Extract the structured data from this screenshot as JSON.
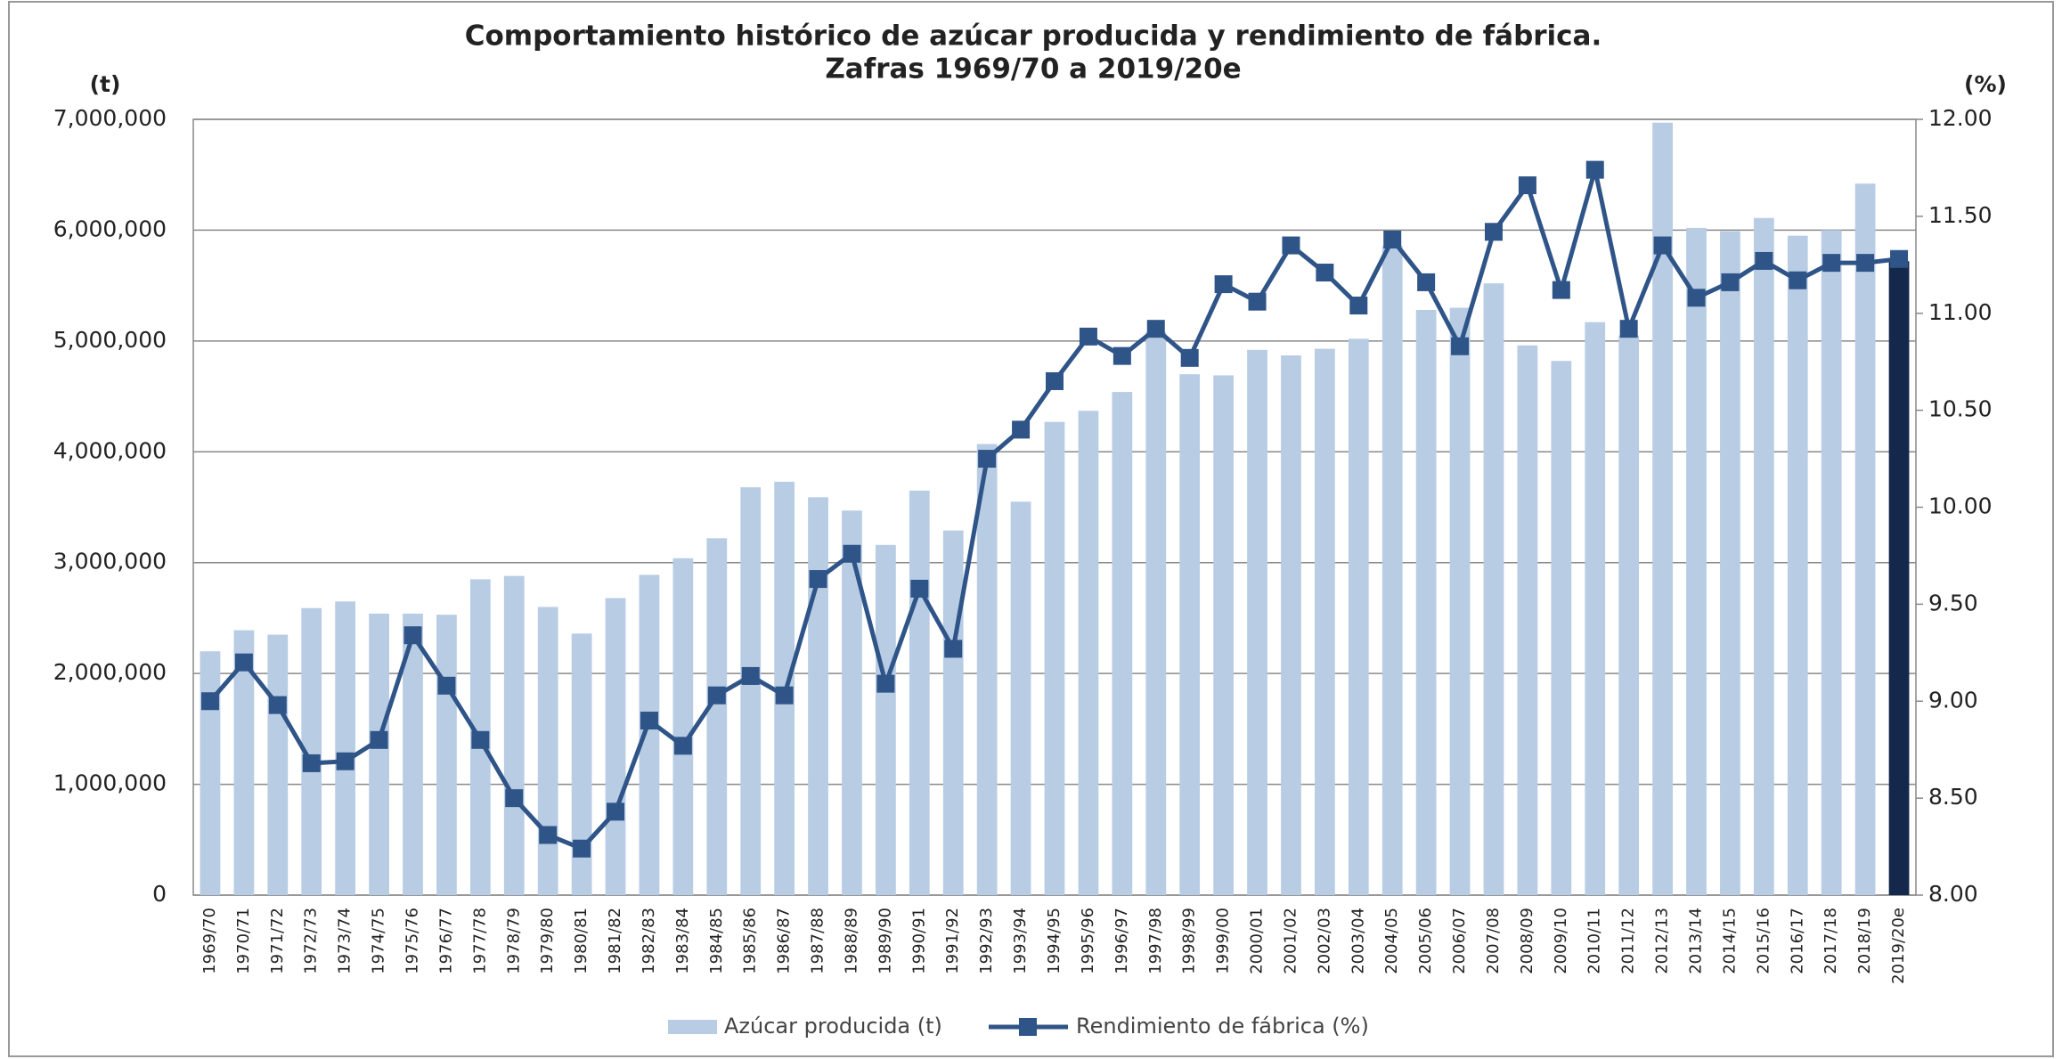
{
  "chart_data": {
    "type": "bar_line",
    "title": "Comportamiento histórico de azúcar producida y rendimiento de fábrica.",
    "subtitle": "Zafras 1969/70 a 2019/20e",
    "y_label": "(t)",
    "y2_label": "(%)",
    "categories": [
      "1969/70",
      "1970/71",
      "1971/72",
      "1972/73",
      "1973/74",
      "1974/75",
      "1975/76",
      "1976/77",
      "1977/78",
      "1978/79",
      "1979/80",
      "1980/81",
      "1981/82",
      "1982/83",
      "1983/84",
      "1984/85",
      "1985/86",
      "1986/87",
      "1987/88",
      "1988/89",
      "1989/90",
      "1990/91",
      "1991/92",
      "1992/93",
      "1993/94",
      "1994/95",
      "1995/96",
      "1996/97",
      "1997/98",
      "1998/99",
      "1999/00",
      "2000/01",
      "2001/02",
      "2002/03",
      "2003/04",
      "2004/05",
      "2005/06",
      "2006/07",
      "2007/08",
      "2008/09",
      "2009/10",
      "2010/11",
      "2011/12",
      "2012/13",
      "2013/14",
      "2014/15",
      "2015/16",
      "2016/17",
      "2017/18",
      "2018/19",
      "2019/20e"
    ],
    "series": [
      {
        "name": "Azúcar producida (t)",
        "kind": "bar",
        "color": "#b8cce4",
        "colors": [
          "#b8cce4",
          "#b8cce4",
          "#b8cce4",
          "#b8cce4",
          "#b8cce4",
          "#b8cce4",
          "#b8cce4",
          "#b8cce4",
          "#b8cce4",
          "#b8cce4",
          "#b8cce4",
          "#b8cce4",
          "#b8cce4",
          "#b8cce4",
          "#b8cce4",
          "#b8cce4",
          "#b8cce4",
          "#b8cce4",
          "#b8cce4",
          "#b8cce4",
          "#b8cce4",
          "#b8cce4",
          "#b8cce4",
          "#b8cce4",
          "#b8cce4",
          "#b8cce4",
          "#b8cce4",
          "#b8cce4",
          "#b8cce4",
          "#b8cce4",
          "#b8cce4",
          "#b8cce4",
          "#b8cce4",
          "#b8cce4",
          "#b8cce4",
          "#b8cce4",
          "#b8cce4",
          "#b8cce4",
          "#b8cce4",
          "#b8cce4",
          "#b8cce4",
          "#b8cce4",
          "#b8cce4",
          "#b8cce4",
          "#b8cce4",
          "#b8cce4",
          "#b8cce4",
          "#b8cce4",
          "#b8cce4",
          "#b8cce4",
          "#14284b"
        ],
        "values": [
          2200000,
          2390000,
          2350000,
          2590000,
          2650000,
          2540000,
          2540000,
          2530000,
          2850000,
          2880000,
          2600000,
          2360000,
          2680000,
          2890000,
          3040000,
          3220000,
          3680000,
          3730000,
          3590000,
          3470000,
          3160000,
          3650000,
          3290000,
          4070000,
          3550000,
          4270000,
          4370000,
          4540000,
          5080000,
          4700000,
          4690000,
          4920000,
          4870000,
          4930000,
          5020000,
          5860000,
          5280000,
          5300000,
          5520000,
          4960000,
          4820000,
          5170000,
          5050000,
          6970000,
          6020000,
          5990000,
          6110000,
          5950000,
          6000000,
          6420000,
          5720000
        ]
      },
      {
        "name": "Rendimiento de fábrica (%)",
        "kind": "line",
        "axis": "y2",
        "color": "#2f5488",
        "values": [
          9.0,
          9.2,
          8.98,
          8.68,
          8.69,
          8.8,
          9.34,
          9.08,
          8.8,
          8.5,
          8.31,
          8.24,
          8.43,
          8.9,
          8.77,
          9.03,
          9.13,
          9.03,
          9.63,
          9.76,
          9.09,
          9.58,
          9.27,
          10.25,
          10.4,
          10.65,
          10.88,
          10.78,
          10.92,
          10.77,
          11.15,
          11.06,
          11.35,
          11.21,
          11.04,
          11.38,
          11.16,
          10.83,
          11.42,
          11.66,
          11.12,
          11.74,
          10.92,
          11.35,
          11.08,
          11.16,
          11.27,
          11.17,
          11.26,
          11.26,
          11.28
        ]
      }
    ],
    "ylim": [
      0,
      7000000
    ],
    "yticks": [
      0,
      {
        "value": 1000000,
        "label": "1,000,000"
      },
      {
        "value": 2000000,
        "label": "2,000,000"
      },
      {
        "value": 3000000,
        "label": "3,000,000"
      },
      {
        "value": 4000000,
        "label": "4,000,000"
      },
      {
        "value": 5000000,
        "label": "5,000,000"
      },
      {
        "value": 6000000,
        "label": "6,000,000"
      },
      {
        "value": 7000000,
        "label": "7,000,000"
      }
    ],
    "y2lim": [
      8,
      12
    ],
    "y2ticks": [
      {
        "value": 8,
        "label": "8.00"
      },
      {
        "value": 8.5,
        "label": "8.50"
      },
      {
        "value": 9,
        "label": "9.00"
      },
      {
        "value": 9.5,
        "label": "9.50"
      },
      {
        "value": 10,
        "label": "10.00"
      },
      {
        "value": 10.5,
        "label": "10.50"
      },
      {
        "value": 11,
        "label": "11.00"
      },
      {
        "value": 11.5,
        "label": "11.50"
      },
      {
        "value": 12,
        "label": "12.00"
      }
    ],
    "grid": true,
    "legend": "bottom"
  }
}
